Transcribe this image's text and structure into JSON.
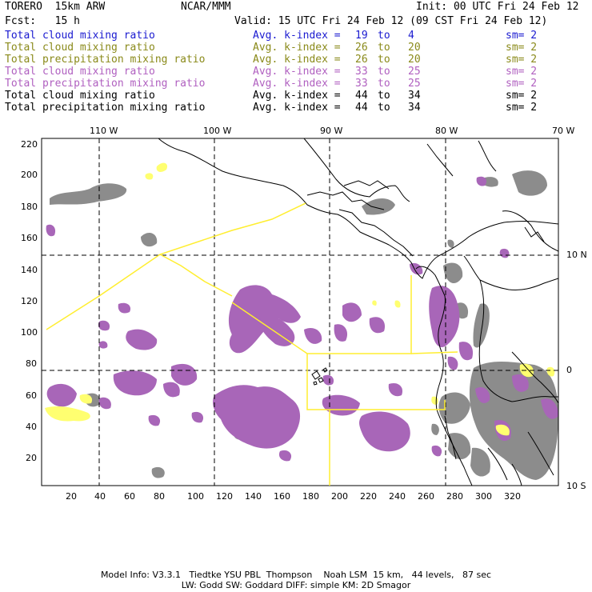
{
  "header": {
    "model": "TORERO  15km ARW",
    "org": "NCAR/MMM",
    "init": "Init: 00 UTC Fri 24 Feb 12",
    "fcst": "Fcst:   15 h",
    "valid": "Valid: 15 UTC Fri 24 Feb 12 (09 CST Fri 24 Feb 12)"
  },
  "legend": [
    {
      "field": "Total cloud mixing ratio",
      "metric": "Avg. k-index =",
      "hi": "19",
      "to": "to",
      "lo": "4",
      "sm": "sm= 2",
      "color": "#1a1ad0"
    },
    {
      "field": "Total cloud mixing ratio",
      "metric": "Avg. k-index =",
      "hi": "26",
      "to": "to",
      "lo": "20",
      "sm": "sm= 2",
      "color": "#8a8a1a"
    },
    {
      "field": "Total precipitation mixing ratio",
      "metric": "Avg. k-index =",
      "hi": "26",
      "to": "to",
      "lo": "20",
      "sm": "sm= 2",
      "color": "#8a8a1a"
    },
    {
      "field": "Total cloud mixing ratio",
      "metric": "Avg. k-index =",
      "hi": "33",
      "to": "to",
      "lo": "25",
      "sm": "sm= 2",
      "color": "#b060c0"
    },
    {
      "field": "Total precipitation mixing ratio",
      "metric": "Avg. k-index =",
      "hi": "33",
      "to": "to",
      "lo": "25",
      "sm": "sm= 2",
      "color": "#b060c0"
    },
    {
      "field": "Total cloud mixing ratio",
      "metric": "Avg. k-index =",
      "hi": "44",
      "to": "to",
      "lo": "34",
      "sm": "sm= 2",
      "color": "#000000"
    },
    {
      "field": "Total precipitation mixing ratio",
      "metric": "Avg. k-index =",
      "hi": "44",
      "to": "to",
      "lo": "34",
      "sm": "sm= 2",
      "color": "#000000"
    }
  ],
  "axes": {
    "top_lon": [
      "110 W",
      "100 W",
      "90 W",
      "80 W",
      "70 W"
    ],
    "right_lat": [
      "10 N",
      "0",
      "10 S"
    ],
    "y_ticks": [
      "220",
      "200",
      "180",
      "160",
      "140",
      "120",
      "100",
      "80",
      "60",
      "40",
      "20"
    ],
    "x_ticks": [
      "20",
      "40",
      "60",
      "80",
      "100",
      "120",
      "140",
      "160",
      "180",
      "200",
      "220",
      "240",
      "260",
      "280",
      "300",
      "320"
    ]
  },
  "colors": {
    "purple": "#a866b8",
    "gray": "#8c8c8c",
    "yellow": "#ffff70",
    "line_yellow": "#ffee30",
    "coast": "#000000"
  },
  "footer": {
    "line1": "Model Info: V3.3.1   Tiedtke YSU PBL  Thompson    Noah LSM  15 km,   44 levels,   87 sec",
    "line2": "LW: Godd SW: Goddard DIFF: simple KM: 2D Smagor"
  }
}
